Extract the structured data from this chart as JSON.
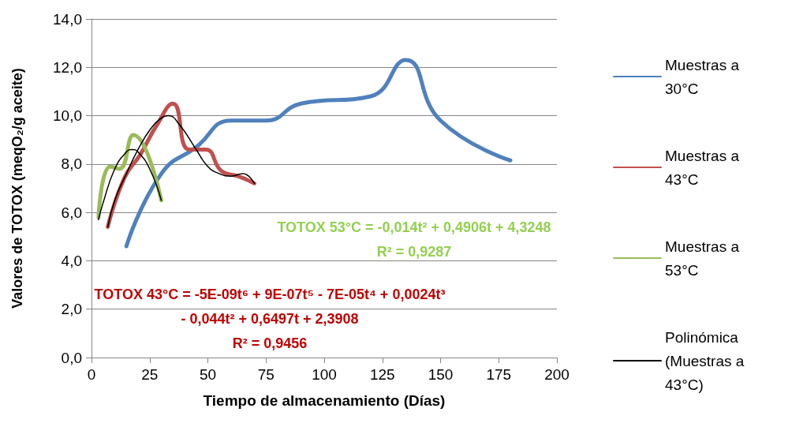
{
  "chart_data": {
    "type": "line",
    "xlabel": "Tiempo de almacenamiento (Días)",
    "ylabel": "Valores de TOTOX (meqO₂/g aceite)",
    "xlim": [
      0,
      200
    ],
    "xticks": [
      0,
      25,
      50,
      75,
      100,
      125,
      150,
      175,
      200
    ],
    "ylim": [
      0,
      14
    ],
    "yticks": [
      {
        "value": 0,
        "label": "0,0"
      },
      {
        "value": 2,
        "label": "2,0"
      },
      {
        "value": 4,
        "label": "4,0"
      },
      {
        "value": 6,
        "label": "6,0"
      },
      {
        "value": 8,
        "label": "8,0"
      },
      {
        "value": 10,
        "label": "10,0"
      },
      {
        "value": 12,
        "label": "12,0"
      },
      {
        "value": 14,
        "label": "14,0"
      }
    ],
    "grid": "y",
    "legend": "right",
    "marker": "none",
    "line_style": "solid",
    "series": [
      {
        "name": "Muestras a 30°C",
        "color": "#4f81bd",
        "x": [
          15,
          30,
          45,
          60,
          75,
          90,
          120,
          135,
          150,
          180
        ],
        "values": [
          4.6,
          7.6,
          8.7,
          9.8,
          9.8,
          10.5,
          10.8,
          12.3,
          9.8,
          8.15
        ]
      },
      {
        "name": "Muestras a 43°C",
        "color": "#c0504d",
        "x": [
          7,
          14,
          21,
          28,
          35,
          42,
          49,
          56,
          63,
          70
        ],
        "values": [
          5.4,
          7.4,
          8.4,
          9.6,
          10.5,
          8.6,
          8.6,
          7.7,
          7.5,
          7.2
        ]
      },
      {
        "name": "Muestras a 53°C",
        "color": "#9bbb59",
        "x": [
          3,
          8,
          12,
          18,
          30
        ],
        "values": [
          5.8,
          7.9,
          7.8,
          9.2,
          6.5
        ]
      },
      {
        "name": "Polinómica (Muestras a 43°C)",
        "color": "#000000",
        "x": [
          7,
          10,
          15,
          20,
          25,
          30,
          33,
          38,
          45,
          50,
          55,
          60,
          65,
          70
        ],
        "values": [
          5.4,
          6.5,
          7.6,
          8.6,
          9.4,
          9.9,
          10.0,
          9.6,
          8.6,
          7.9,
          7.6,
          7.5,
          7.6,
          7.2
        ]
      },
      {
        "color": "#000000",
        "x": [
          3,
          5,
          10,
          15,
          17.5,
          20,
          25,
          30
        ],
        "values": [
          5.7,
          6.4,
          7.8,
          8.5,
          8.6,
          8.5,
          7.8,
          6.5
        ]
      }
    ],
    "annotations": [
      "TOTOX 53°C = -0,014t² + 0,4906t + 4,3248\nR² = 0,9287",
      "TOTOX 43°C = -5E-09t⁶ + 9E-07t⁵ - 7E-05t⁴ + 0,0024t³\n- 0,044t² + 0,6497t + 2,3908\nR² = 0,9456"
    ]
  }
}
